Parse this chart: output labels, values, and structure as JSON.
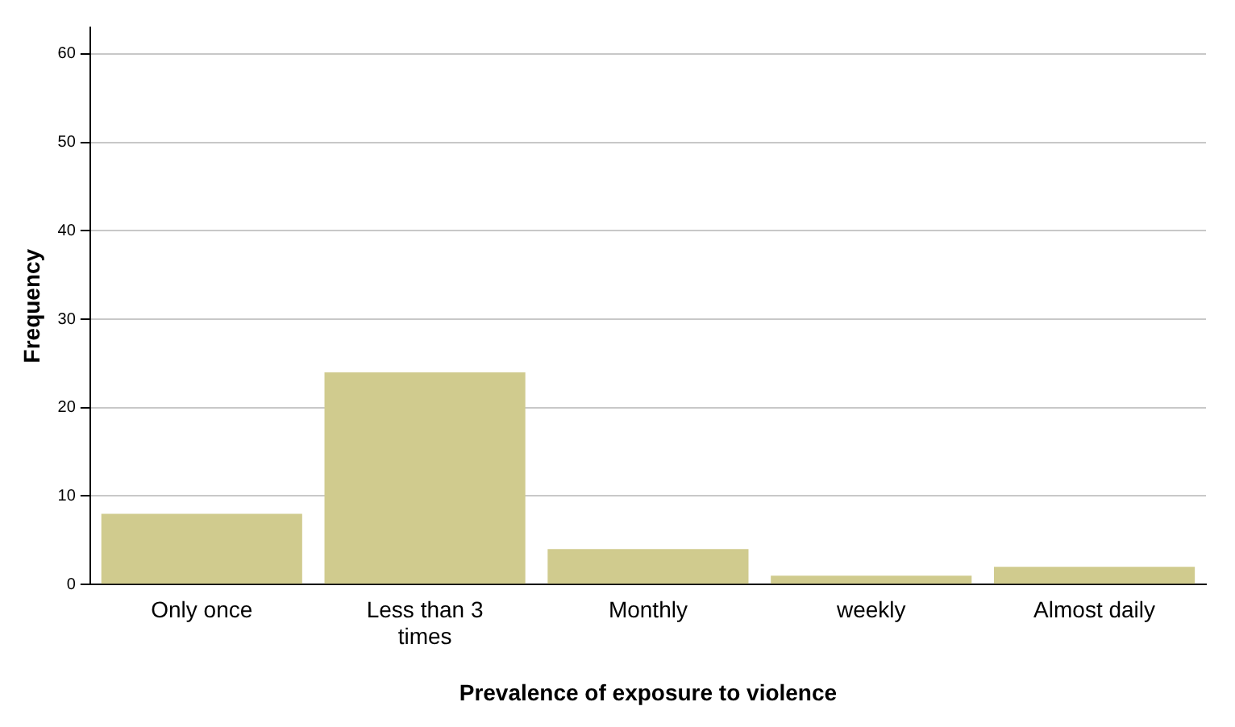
{
  "chart_data": {
    "type": "bar",
    "xlabel": "Prevalence of exposure to violence",
    "ylabel": "Frequency",
    "categories": [
      "Only once",
      "Less than 3 times",
      "Monthly",
      "weekly",
      "Almost daily"
    ],
    "values": [
      8,
      24,
      4,
      1,
      2
    ],
    "color": "#d0cb8e",
    "ylim": [
      0,
      63
    ],
    "yticks": [
      0,
      10,
      20,
      30,
      40,
      50,
      60
    ],
    "grid": "y",
    "legend": false
  }
}
